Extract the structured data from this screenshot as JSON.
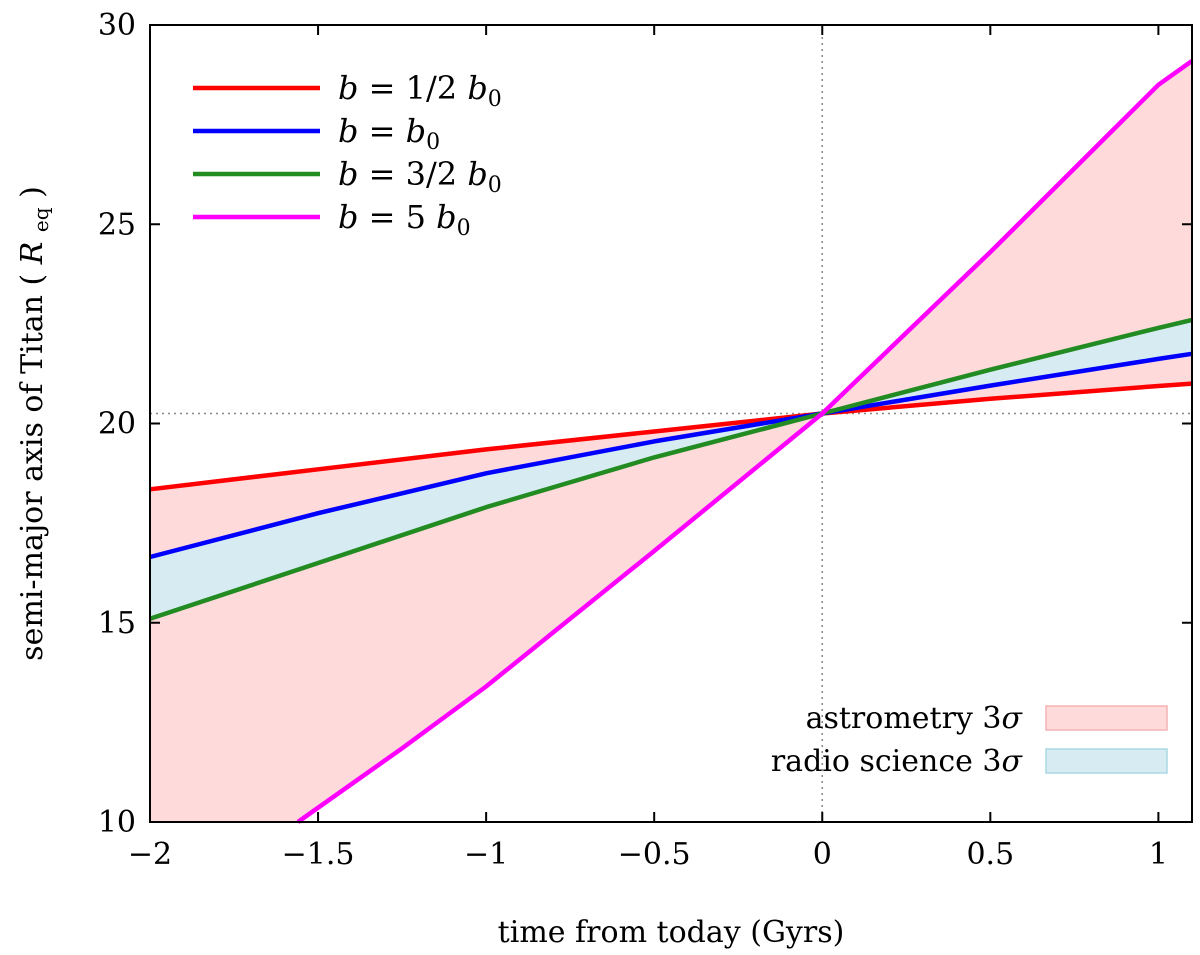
{
  "chart_data": {
    "type": "line",
    "xlabel": "time from today (Gyrs)",
    "ylabel": "semi-major axis of Titan",
    "ylabel_unit": "R",
    "ylabel_unit_sub": "eq",
    "xlim": [
      -2,
      1.1
    ],
    "ylim": [
      10,
      30
    ],
    "x_ticks": [
      {
        "value": -2,
        "label": "−2"
      },
      {
        "value": -1.5,
        "label": "−1.5"
      },
      {
        "value": -1,
        "label": "−1"
      },
      {
        "value": -0.5,
        "label": "−0.5"
      },
      {
        "value": 0,
        "label": "0"
      },
      {
        "value": 0.5,
        "label": "0.5"
      },
      {
        "value": 1,
        "label": "1"
      }
    ],
    "y_ticks": [
      {
        "value": 10,
        "label": "10"
      },
      {
        "value": 15,
        "label": "15"
      },
      {
        "value": 20,
        "label": "20"
      },
      {
        "value": 25,
        "label": "25"
      },
      {
        "value": 30,
        "label": "30"
      }
    ],
    "reference_lines": {
      "x": 0,
      "y": 20.25
    },
    "series": [
      {
        "name": "b = 1/2 b0",
        "label": "1/2",
        "color": "#ff0000",
        "x": [
          -2,
          -1.5,
          -1,
          -0.5,
          0,
          0.5,
          1,
          1.1
        ],
        "values": [
          18.35,
          18.85,
          19.35,
          19.8,
          20.25,
          20.62,
          20.94,
          21.0
        ]
      },
      {
        "name": "b = b0",
        "label": "",
        "color": "#0000ff",
        "x": [
          -2,
          -1.5,
          -1,
          -0.5,
          0,
          0.5,
          1,
          1.1
        ],
        "values": [
          16.65,
          17.75,
          18.75,
          19.55,
          20.25,
          20.95,
          21.62,
          21.75
        ]
      },
      {
        "name": "b = 3/2 b0",
        "label": "3/2",
        "color": "#228b22",
        "x": [
          -2,
          -1.5,
          -1,
          -0.5,
          0,
          0.5,
          1,
          1.1
        ],
        "values": [
          15.1,
          16.5,
          17.9,
          19.15,
          20.25,
          21.35,
          22.4,
          22.6
        ]
      },
      {
        "name": "b = 5 b0",
        "label": "5",
        "color": "#ff00ff",
        "x": [
          -1.56,
          -1.25,
          -1,
          -0.5,
          0,
          0.5,
          1,
          1.1
        ],
        "values": [
          10.0,
          11.85,
          13.4,
          16.8,
          20.25,
          24.3,
          28.5,
          29.1
        ]
      }
    ],
    "bands": [
      {
        "name": "astrometry 3σ",
        "label": "astrometry 3",
        "color": "#ffdada",
        "stroke": "#f4b4b4",
        "between": [
          "b = 5 b0",
          "b = 1/2 b0"
        ]
      },
      {
        "name": "radio science 3σ",
        "label": "radio science 3",
        "color": "#d7ecf2",
        "stroke": "#a9d8e4",
        "between": [
          "b = 3/2 b0",
          "b = b0"
        ]
      }
    ],
    "legend": {
      "position": "top-left",
      "prefix": "b",
      "equals": "=",
      "suffix": "b",
      "sub": "0",
      "sigma": "σ"
    }
  }
}
